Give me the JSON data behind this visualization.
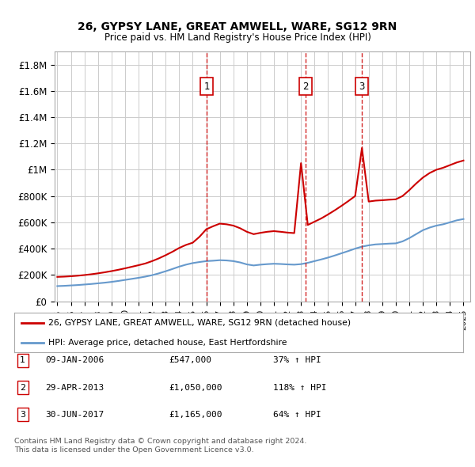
{
  "title": "26, GYPSY LANE, GREAT AMWELL, WARE, SG12 9RN",
  "subtitle": "Price paid vs. HM Land Registry's House Price Index (HPI)",
  "xlim": [
    1994.8,
    2025.5
  ],
  "ylim": [
    0,
    1900000
  ],
  "yticks": [
    0,
    200000,
    400000,
    600000,
    800000,
    1000000,
    1200000,
    1400000,
    1600000,
    1800000
  ],
  "ytick_labels": [
    "£0",
    "£200K",
    "£400K",
    "£600K",
    "£800K",
    "£1M",
    "£1.2M",
    "£1.4M",
    "£1.6M",
    "£1.8M"
  ],
  "transactions": [
    {
      "num": 1,
      "date": "09-JAN-2006",
      "price": 547000,
      "year": 2006.03,
      "pct": "37%",
      "dir": "↑"
    },
    {
      "num": 2,
      "date": "29-APR-2013",
      "price": 1050000,
      "year": 2013.33,
      "pct": "118%",
      "dir": "↑"
    },
    {
      "num": 3,
      "date": "30-JUN-2017",
      "price": 1165000,
      "year": 2017.5,
      "pct": "64%",
      "dir": "↑"
    }
  ],
  "legend_entry1": "26, GYPSY LANE, GREAT AMWELL, WARE, SG12 9RN (detached house)",
  "legend_entry2": "HPI: Average price, detached house, East Hertfordshire",
  "footnote1": "Contains HM Land Registry data © Crown copyright and database right 2024.",
  "footnote2": "This data is licensed under the Open Government Licence v3.0.",
  "line_color_red": "#cc0000",
  "line_color_blue": "#6699cc",
  "vline_color": "#cc0000",
  "bg_color": "#ffffff",
  "grid_color": "#cccccc",
  "hpi_years": [
    1995,
    1995.5,
    1996,
    1996.5,
    1997,
    1997.5,
    1998,
    1998.5,
    1999,
    1999.5,
    2000,
    2000.5,
    2001,
    2001.5,
    2002,
    2002.5,
    2003,
    2003.5,
    2004,
    2004.5,
    2005,
    2005.5,
    2006,
    2006.5,
    2007,
    2007.5,
    2008,
    2008.5,
    2009,
    2009.5,
    2010,
    2010.5,
    2011,
    2011.5,
    2012,
    2012.5,
    2013,
    2013.5,
    2014,
    2014.5,
    2015,
    2015.5,
    2016,
    2016.5,
    2017,
    2017.5,
    2018,
    2018.5,
    2019,
    2019.5,
    2020,
    2020.5,
    2021,
    2021.5,
    2022,
    2022.5,
    2023,
    2023.5,
    2024,
    2024.5,
    2025
  ],
  "hpi_values": [
    115000,
    117000,
    120000,
    123000,
    127000,
    131000,
    136000,
    141000,
    147000,
    154000,
    162000,
    170000,
    178000,
    187000,
    198000,
    212000,
    228000,
    245000,
    263000,
    278000,
    290000,
    298000,
    305000,
    308000,
    312000,
    310000,
    305000,
    295000,
    280000,
    272000,
    278000,
    282000,
    285000,
    283000,
    280000,
    278000,
    282000,
    292000,
    305000,
    318000,
    332000,
    348000,
    365000,
    382000,
    400000,
    415000,
    425000,
    432000,
    435000,
    438000,
    440000,
    455000,
    480000,
    510000,
    540000,
    560000,
    575000,
    585000,
    600000,
    615000,
    625000
  ],
  "price_years": [
    1995,
    1995.5,
    1996,
    1996.5,
    1997,
    1997.5,
    1998,
    1998.5,
    1999,
    1999.5,
    2000,
    2000.5,
    2001,
    2001.5,
    2002,
    2002.5,
    2003,
    2003.5,
    2004,
    2004.5,
    2005,
    2005.5,
    2006,
    2006.5,
    2007,
    2007.5,
    2008,
    2008.5,
    2009,
    2009.5,
    2010,
    2010.5,
    2011,
    2011.5,
    2012,
    2012.5,
    2013,
    2013.5,
    2014,
    2014.5,
    2015,
    2015.5,
    2016,
    2016.5,
    2017,
    2017.5,
    2018,
    2018.5,
    2019,
    2019.5,
    2020,
    2020.5,
    2021,
    2021.5,
    2022,
    2022.5,
    2023,
    2023.5,
    2024,
    2024.5,
    2025
  ],
  "price_values": [
    185000,
    187000,
    190000,
    194000,
    199000,
    205000,
    212000,
    220000,
    229000,
    239000,
    250000,
    262000,
    274000,
    287000,
    305000,
    326000,
    350000,
    376000,
    405000,
    428000,
    445000,
    490000,
    547000,
    570000,
    590000,
    585000,
    575000,
    555000,
    528000,
    510000,
    520000,
    528000,
    533000,
    528000,
    522000,
    518000,
    1050000,
    580000,
    605000,
    630000,
    660000,
    692000,
    726000,
    762000,
    800000,
    1165000,
    758000,
    765000,
    768000,
    772000,
    775000,
    800000,
    845000,
    895000,
    940000,
    975000,
    1000000,
    1015000,
    1035000,
    1055000,
    1070000
  ]
}
